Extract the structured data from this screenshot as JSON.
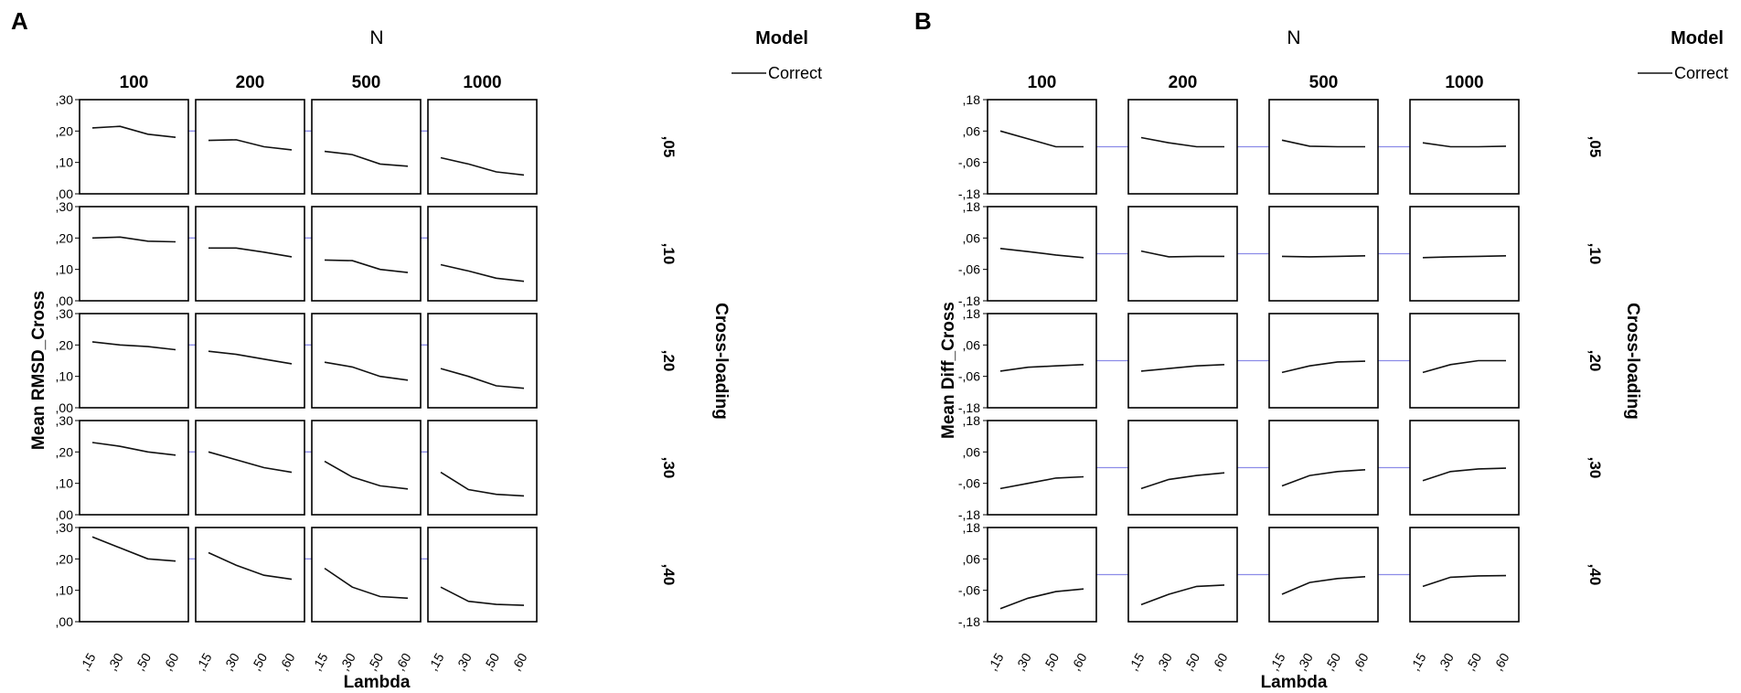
{
  "chart_data": [
    {
      "panel_label": "A",
      "type": "line",
      "col_facet_title": "N",
      "col_facets": [
        "100",
        "200",
        "500",
        "1000"
      ],
      "row_facet_title": "Cross-loading",
      "row_facets": [
        ",05",
        ",10",
        ",20",
        ",30",
        ",40"
      ],
      "x": [
        ",15",
        ",30",
        ",50",
        ",60"
      ],
      "xlabel": "Lambda",
      "ylabel": "Mean RMSD_Cross",
      "ylim": [
        0,
        0.3
      ],
      "yticks": [
        0.3,
        0.2,
        0.1,
        0.0
      ],
      "ytick_labels": [
        ",30",
        ",20",
        ",10",
        ",00"
      ],
      "reference_line": 0.2,
      "legend": {
        "title": "Model",
        "entries": [
          "Correct"
        ]
      },
      "series": [
        {
          "name": "Correct",
          "row": ",05",
          "col": "100",
          "values": [
            0.21,
            0.215,
            0.19,
            0.18
          ]
        },
        {
          "name": "Correct",
          "row": ",05",
          "col": "200",
          "values": [
            0.17,
            0.172,
            0.15,
            0.14
          ]
        },
        {
          "name": "Correct",
          "row": ",05",
          "col": "500",
          "values": [
            0.135,
            0.125,
            0.095,
            0.088
          ]
        },
        {
          "name": "Correct",
          "row": ",05",
          "col": "1000",
          "values": [
            0.115,
            0.095,
            0.07,
            0.06
          ]
        },
        {
          "name": "Correct",
          "row": ",10",
          "col": "100",
          "values": [
            0.2,
            0.203,
            0.19,
            0.188
          ]
        },
        {
          "name": "Correct",
          "row": ",10",
          "col": "200",
          "values": [
            0.168,
            0.168,
            0.155,
            0.14
          ]
        },
        {
          "name": "Correct",
          "row": ",10",
          "col": "500",
          "values": [
            0.13,
            0.128,
            0.1,
            0.09
          ]
        },
        {
          "name": "Correct",
          "row": ",10",
          "col": "1000",
          "values": [
            0.115,
            0.095,
            0.072,
            0.062
          ]
        },
        {
          "name": "Correct",
          "row": ",20",
          "col": "100",
          "values": [
            0.21,
            0.2,
            0.195,
            0.185
          ]
        },
        {
          "name": "Correct",
          "row": ",20",
          "col": "200",
          "values": [
            0.18,
            0.17,
            0.155,
            0.14
          ]
        },
        {
          "name": "Correct",
          "row": ",20",
          "col": "500",
          "values": [
            0.145,
            0.13,
            0.1,
            0.088
          ]
        },
        {
          "name": "Correct",
          "row": ",20",
          "col": "1000",
          "values": [
            0.125,
            0.1,
            0.07,
            0.062
          ]
        },
        {
          "name": "Correct",
          "row": ",30",
          "col": "100",
          "values": [
            0.23,
            0.218,
            0.2,
            0.19
          ]
        },
        {
          "name": "Correct",
          "row": ",30",
          "col": "200",
          "values": [
            0.2,
            0.175,
            0.15,
            0.135
          ]
        },
        {
          "name": "Correct",
          "row": ",30",
          "col": "500",
          "values": [
            0.17,
            0.12,
            0.092,
            0.082
          ]
        },
        {
          "name": "Correct",
          "row": ",30",
          "col": "1000",
          "values": [
            0.135,
            0.08,
            0.065,
            0.06
          ]
        },
        {
          "name": "Correct",
          "row": ",40",
          "col": "100",
          "values": [
            0.27,
            0.235,
            0.2,
            0.193
          ]
        },
        {
          "name": "Correct",
          "row": ",40",
          "col": "200",
          "values": [
            0.22,
            0.18,
            0.148,
            0.135
          ]
        },
        {
          "name": "Correct",
          "row": ",40",
          "col": "500",
          "values": [
            0.17,
            0.11,
            0.08,
            0.075
          ]
        },
        {
          "name": "Correct",
          "row": ",40",
          "col": "1000",
          "values": [
            0.11,
            0.065,
            0.055,
            0.052
          ]
        }
      ]
    },
    {
      "panel_label": "B",
      "type": "line",
      "col_facet_title": "N",
      "col_facets": [
        "100",
        "200",
        "500",
        "1000"
      ],
      "row_facet_title": "Cross-loading",
      "row_facets": [
        ",05",
        ",10",
        ",20",
        ",30",
        ",40"
      ],
      "x": [
        ",15",
        ",30",
        ",50",
        ",60"
      ],
      "xlabel": "Lambda",
      "ylabel": "Mean Diff_Cross",
      "ylim": [
        -0.18,
        0.18
      ],
      "yticks": [
        0.18,
        0.06,
        -0.06,
        -0.18
      ],
      "ytick_labels": [
        ",18",
        ",06",
        "-,06",
        "-,18"
      ],
      "reference_line": 0.0,
      "legend": {
        "title": "Model",
        "entries": [
          "Correct"
        ]
      },
      "series": [
        {
          "name": "Correct",
          "row": ",05",
          "col": "100",
          "values": [
            0.06,
            0.03,
            0.0,
            0.0
          ]
        },
        {
          "name": "Correct",
          "row": ",05",
          "col": "200",
          "values": [
            0.035,
            0.015,
            0.0,
            0.0
          ]
        },
        {
          "name": "Correct",
          "row": ",05",
          "col": "500",
          "values": [
            0.025,
            0.002,
            0.0,
            0.0
          ]
        },
        {
          "name": "Correct",
          "row": ",05",
          "col": "1000",
          "values": [
            0.015,
            0.0,
            0.0,
            0.002
          ]
        },
        {
          "name": "Correct",
          "row": ",10",
          "col": "100",
          "values": [
            0.02,
            0.008,
            -0.005,
            -0.015
          ]
        },
        {
          "name": "Correct",
          "row": ",10",
          "col": "200",
          "values": [
            0.01,
            -0.012,
            -0.01,
            -0.01
          ]
        },
        {
          "name": "Correct",
          "row": ",10",
          "col": "500",
          "values": [
            -0.01,
            -0.012,
            -0.01,
            -0.008
          ]
        },
        {
          "name": "Correct",
          "row": ",10",
          "col": "1000",
          "values": [
            -0.015,
            -0.012,
            -0.01,
            -0.008
          ]
        },
        {
          "name": "Correct",
          "row": ",20",
          "col": "100",
          "values": [
            -0.04,
            -0.025,
            -0.02,
            -0.015
          ]
        },
        {
          "name": "Correct",
          "row": ",20",
          "col": "200",
          "values": [
            -0.04,
            -0.03,
            -0.02,
            -0.015
          ]
        },
        {
          "name": "Correct",
          "row": ",20",
          "col": "500",
          "values": [
            -0.045,
            -0.02,
            -0.005,
            -0.002
          ]
        },
        {
          "name": "Correct",
          "row": ",20",
          "col": "1000",
          "values": [
            -0.045,
            -0.015,
            0.0,
            0.0
          ]
        },
        {
          "name": "Correct",
          "row": ",30",
          "col": "100",
          "values": [
            -0.08,
            -0.06,
            -0.04,
            -0.035
          ]
        },
        {
          "name": "Correct",
          "row": ",30",
          "col": "200",
          "values": [
            -0.08,
            -0.045,
            -0.03,
            -0.02
          ]
        },
        {
          "name": "Correct",
          "row": ",30",
          "col": "500",
          "values": [
            -0.07,
            -0.03,
            -0.015,
            -0.008
          ]
        },
        {
          "name": "Correct",
          "row": ",30",
          "col": "1000",
          "values": [
            -0.05,
            -0.015,
            -0.005,
            -0.002
          ]
        },
        {
          "name": "Correct",
          "row": ",40",
          "col": "100",
          "values": [
            -0.13,
            -0.09,
            -0.065,
            -0.055
          ]
        },
        {
          "name": "Correct",
          "row": ",40",
          "col": "200",
          "values": [
            -0.115,
            -0.075,
            -0.045,
            -0.04
          ]
        },
        {
          "name": "Correct",
          "row": ",40",
          "col": "500",
          "values": [
            -0.075,
            -0.03,
            -0.015,
            -0.008
          ]
        },
        {
          "name": "Correct",
          "row": ",40",
          "col": "1000",
          "values": [
            -0.045,
            -0.01,
            -0.005,
            -0.004
          ]
        }
      ]
    }
  ]
}
